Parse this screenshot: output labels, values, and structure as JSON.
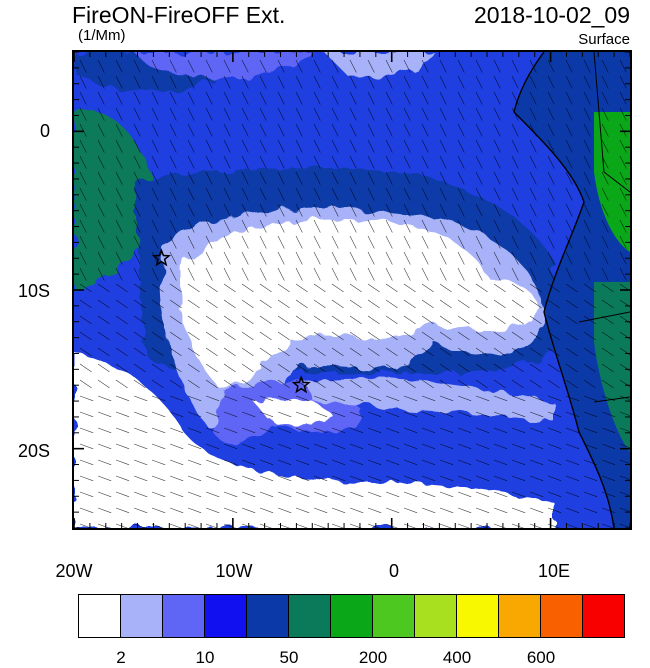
{
  "header": {
    "title_left": "FireON-FireOFF Ext.",
    "title_right": "2018-10-02_09",
    "units": "(1/Mm)",
    "level": "Surface"
  },
  "axes": {
    "lat_labels": [
      "0",
      "10S",
      "20S"
    ],
    "lon_labels": [
      "20W",
      "10W",
      "0",
      "10E"
    ]
  },
  "colorbar": {
    "colors": [
      "#ffffff",
      "#a8b2f8",
      "#5f66f6",
      "#1010f0",
      "#0b3aa8",
      "#0b7a5a",
      "#0aa818",
      "#4cc820",
      "#a8e020",
      "#f8f800",
      "#f8a800",
      "#f86000",
      "#f80000"
    ],
    "tick_labels": [
      "2",
      "10",
      "50",
      "200",
      "400",
      "600"
    ]
  },
  "markers": [
    {
      "name": "star-marker-1",
      "lon": -14.5,
      "lat": -8.0
    },
    {
      "name": "star-marker-2",
      "lon": -5.7,
      "lat": -16.0
    }
  ],
  "palette": {
    "ocean_blue": "#1f3fe0",
    "deep_blue": "#0b3aa8",
    "light_blue": "#a8b2f8",
    "mid_blue": "#5f66f6",
    "land_green": "#0b7a5a",
    "land_bright": "#0aa818"
  }
}
